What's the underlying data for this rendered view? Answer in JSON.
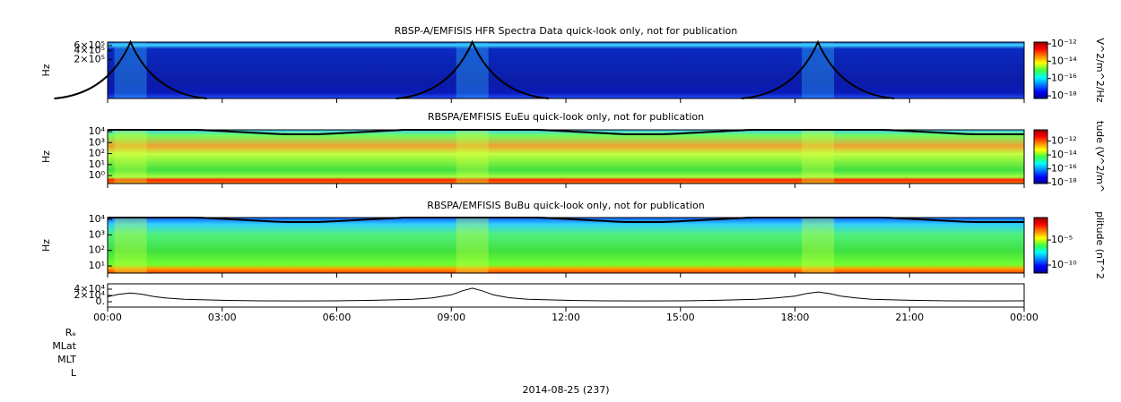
{
  "chart_data": [
    {
      "type": "spectrogram",
      "title": "RBSP-A/EMFISIS  HFR Spectra Data quick-look only, not for publication",
      "ylabel": "Hz",
      "yscale": "log",
      "ylim": [
        10000,
        780000
      ],
      "yticks": [
        {
          "value": 200000,
          "label": "2×10⁵"
        },
        {
          "value": 400000,
          "label": "4×10⁵"
        },
        {
          "value": 600000,
          "label": "6×10⁵"
        }
      ],
      "colorbar_label": "V^2/m^2/Hz",
      "zscale": "log",
      "zlim": [
        5e-19,
        1.6e-12
      ],
      "zticks": [
        {
          "value": 1e-12,
          "label": "10⁻¹²"
        },
        {
          "value": 1e-14,
          "label": "10⁻¹⁴"
        },
        {
          "value": 1e-16,
          "label": "10⁻¹⁶"
        },
        {
          "value": 1e-18,
          "label": "10⁻¹⁸"
        }
      ]
    },
    {
      "type": "spectrogram",
      "title": "RBSPA/EMFISIS  EuEu quick-look only, not for publication",
      "ylabel": "Hz",
      "yscale": "log",
      "ylim": [
        0.19,
        14500
      ],
      "yticks": [
        {
          "value": 1,
          "label": "10⁰"
        },
        {
          "value": 10,
          "label": "10¹"
        },
        {
          "value": 100,
          "label": "10²"
        },
        {
          "value": 1000,
          "label": "10³"
        },
        {
          "value": 10000,
          "label": "10⁴"
        }
      ],
      "colorbar_label": "tude (V^2/m^",
      "zscale": "log",
      "zlim": [
        8e-19,
        4e-11
      ],
      "zticks": [
        {
          "value": 1e-12,
          "label": "10⁻¹²"
        },
        {
          "value": 1e-14,
          "label": "10⁻¹⁴"
        },
        {
          "value": 1e-16,
          "label": "10⁻¹⁶"
        },
        {
          "value": 1e-18,
          "label": "10⁻¹⁸"
        }
      ]
    },
    {
      "type": "spectrogram",
      "title": "RBSPA/EMFISIS  BuBu quick-look only, not for publication",
      "ylabel": "Hz",
      "yscale": "log",
      "ylim": [
        3.5,
        13000
      ],
      "yticks": [
        {
          "value": 10,
          "label": "10¹"
        },
        {
          "value": 100,
          "label": "10²"
        },
        {
          "value": 1000,
          "label": "10³"
        },
        {
          "value": 10000,
          "label": "10⁴"
        }
      ],
      "colorbar_label": "plitude (nT^2",
      "zscale": "log",
      "zlim": [
        2.5e-12,
        0.3
      ],
      "zticks": [
        {
          "value": 1e-05,
          "label": "10⁻⁵"
        },
        {
          "value": 1e-10,
          "label": "10⁻¹⁰"
        }
      ]
    },
    {
      "type": "line",
      "color": "#000000",
      "ylim": [
        -17000,
        57000
      ],
      "yticks": [
        {
          "value": 0,
          "label": "0."
        },
        {
          "value": 20000,
          "label": "2×10⁴"
        },
        {
          "value": 40000,
          "label": "4×10⁴"
        }
      ],
      "xlim": [
        0,
        24
      ],
      "xticks": [
        {
          "value": 0,
          "label": "00:00"
        },
        {
          "value": 3,
          "label": "03:00"
        },
        {
          "value": 6,
          "label": "06:00"
        },
        {
          "value": 9,
          "label": "09:00"
        },
        {
          "value": 12,
          "label": "12:00"
        },
        {
          "value": 15,
          "label": "15:00"
        },
        {
          "value": 18,
          "label": "18:00"
        },
        {
          "value": 21,
          "label": "21:00"
        },
        {
          "value": 24,
          "label": "00:00"
        }
      ],
      "x": [
        0,
        0.3,
        0.6,
        0.9,
        1.2,
        1.5,
        2,
        3,
        4,
        5,
        6,
        7,
        8,
        8.5,
        9,
        9.3,
        9.55,
        9.8,
        10.1,
        10.5,
        11,
        12,
        13,
        14,
        15,
        16,
        17,
        17.5,
        18,
        18.3,
        18.6,
        18.9,
        19.2,
        19.6,
        20,
        21,
        22,
        23,
        24
      ],
      "values": [
        16000,
        24000,
        28000,
        24000,
        17000,
        12000,
        8000,
        4500,
        3000,
        2500,
        3000,
        4500,
        8000,
        12000,
        22000,
        35000,
        43000,
        35000,
        22000,
        13000,
        8000,
        4500,
        3000,
        2500,
        3000,
        4500,
        8000,
        12000,
        18000,
        26000,
        31000,
        26000,
        18000,
        12000,
        8000,
        4500,
        3000,
        2500,
        3000
      ]
    }
  ],
  "ephemeris_labels": [
    "Rₑ",
    "MLat",
    "MLT",
    "L"
  ],
  "date_label": "2014-08-25 (237)"
}
